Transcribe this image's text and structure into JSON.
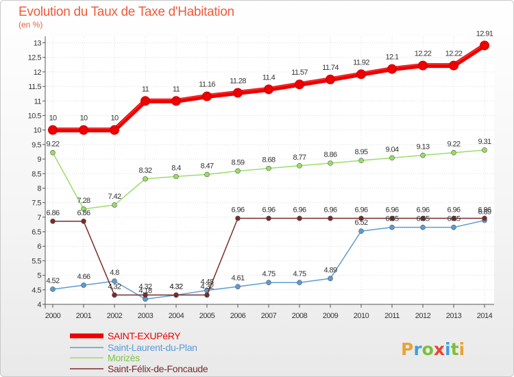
{
  "header": {
    "title": "Evolution du Taux de Taxe d'Habitation",
    "subtitle": "(en %)"
  },
  "brand": {
    "letters": [
      "P",
      "r",
      "o",
      "x",
      "i",
      "t",
      "i"
    ],
    "colors": [
      "#e8a33a",
      "#3fa0d8",
      "#7bbf3a",
      "#e9452f",
      "#3fa0d8",
      "#7bbf3a",
      "#e8a33a"
    ]
  },
  "chart_data": {
    "type": "line",
    "title": "Evolution du Taux de Taxe d'Habitation",
    "subtitle": "(en %)",
    "x": [
      2000,
      2001,
      2002,
      2003,
      2004,
      2005,
      2006,
      2007,
      2008,
      2009,
      2010,
      2011,
      2012,
      2013,
      2014
    ],
    "y_ticks": [
      4,
      4.5,
      5,
      5.5,
      6,
      6.5,
      7,
      7.5,
      8,
      8.5,
      9,
      9.5,
      10,
      10.5,
      11,
      11.5,
      12,
      12.5,
      13
    ],
    "ylim": [
      4,
      13
    ],
    "legend_position": "bottom-left",
    "series": [
      {
        "name": "SAINT-EXUPéRY",
        "color": "#ee0000",
        "values": [
          10,
          10,
          10,
          11,
          11,
          11.16,
          11.28,
          11.4,
          11.57,
          11.74,
          11.92,
          12.1,
          12.22,
          12.22,
          12.91
        ],
        "labels": [
          "10",
          "10",
          "10",
          "11",
          "11",
          "11.16",
          "11.28",
          "11.4",
          "11.57",
          "11.74",
          "11.92",
          "12.1",
          "12.22",
          "12.22",
          "12.91"
        ]
      },
      {
        "name": "Saint-Laurent-du-Plan",
        "color": "#5b9bd5",
        "values": [
          4.52,
          4.66,
          4.8,
          4.18,
          4.32,
          4.48,
          4.61,
          4.75,
          4.75,
          4.89,
          6.52,
          6.65,
          6.65,
          6.65,
          6.89
        ],
        "labels": [
          "4.52",
          "4.66",
          "4.8",
          "4.18",
          "4.32",
          "4.48",
          "4.61",
          "4.75",
          "4.75",
          "4.89",
          "6.52",
          "6.65",
          "6.65",
          "6.65",
          "6.89"
        ]
      },
      {
        "name": "Morizès",
        "color": "#99dd66",
        "values": [
          9.22,
          7.28,
          7.42,
          8.32,
          8.4,
          8.47,
          8.59,
          8.68,
          8.77,
          8.86,
          8.95,
          9.04,
          9.13,
          9.22,
          9.31
        ],
        "labels": [
          "9.22",
          "7.28",
          "7.42",
          "8.32",
          "8.4",
          "8.47",
          "8.59",
          "8.68",
          "8.77",
          "8.86",
          "8.95",
          "9.04",
          "9.13",
          "9.22",
          "9.31"
        ]
      },
      {
        "name": "Saint-Félix-de-Foncaude",
        "color": "#7a2a2a",
        "values": [
          6.86,
          6.86,
          4.32,
          4.32,
          4.32,
          4.32,
          6.96,
          6.96,
          6.96,
          6.96,
          6.96,
          6.96,
          6.96,
          6.96,
          6.96
        ],
        "labels": [
          "6.86",
          "6.86",
          "4.32",
          "4.32",
          "4.32",
          "4.32",
          "6.96",
          "6.96",
          "6.96",
          "6.96",
          "6.96",
          "6.96",
          "6.96",
          "6.96",
          "6.96"
        ]
      }
    ]
  }
}
